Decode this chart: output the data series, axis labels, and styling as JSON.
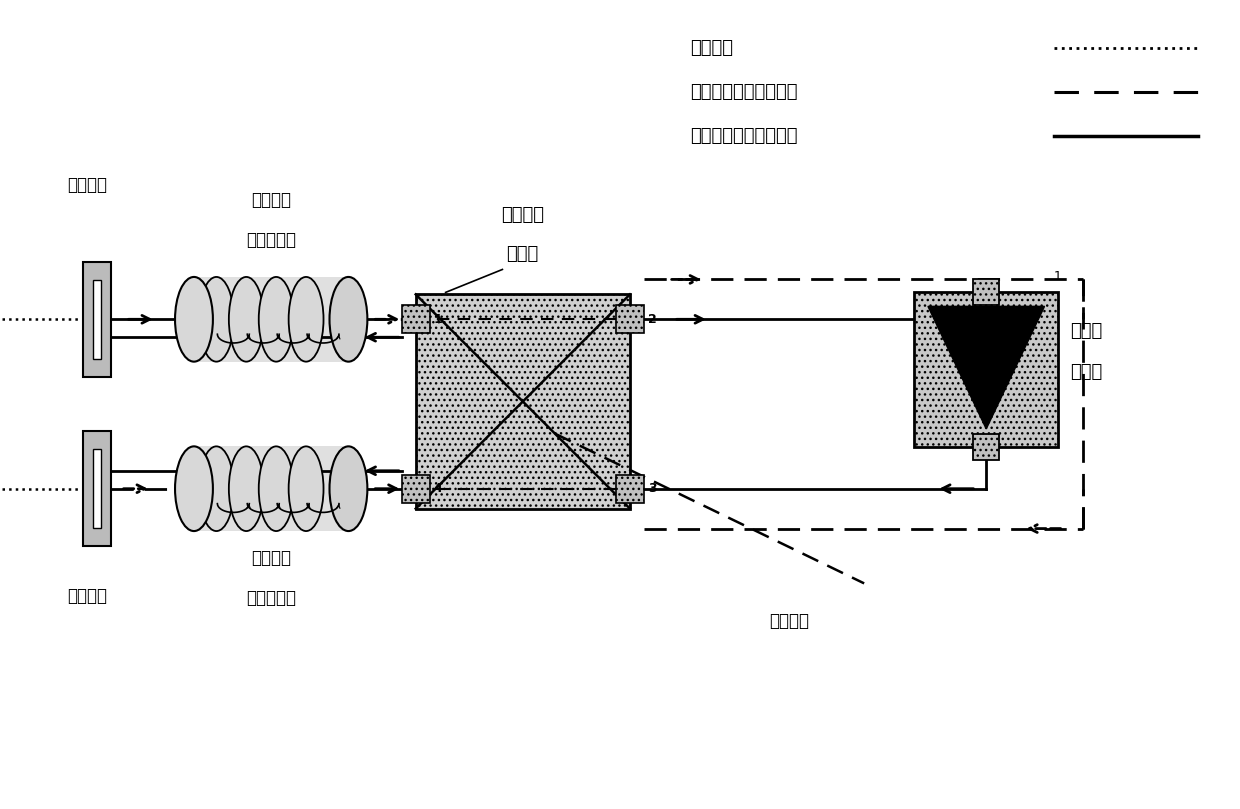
{
  "bg_color": "#ffffff",
  "legend_labels": [
    "非偏振光",
    "垂直于水平面的偏振光",
    "平行于水平面的偏振光"
  ],
  "labels": {
    "polarizer1": "起偏器一",
    "polarizer2": "起偏器二",
    "faraday1_l1": "单向法拉",
    "faraday1_l2": "第旋转器一",
    "faraday2_l1": "单向法拉",
    "faraday2_l2": "第旋转器二",
    "bsb_l1": "双折射分",
    "bsb_l2": "束器件",
    "amp_l1": "单向光",
    "amp_l2": "放大器",
    "optical_axis": "光轴方向"
  }
}
